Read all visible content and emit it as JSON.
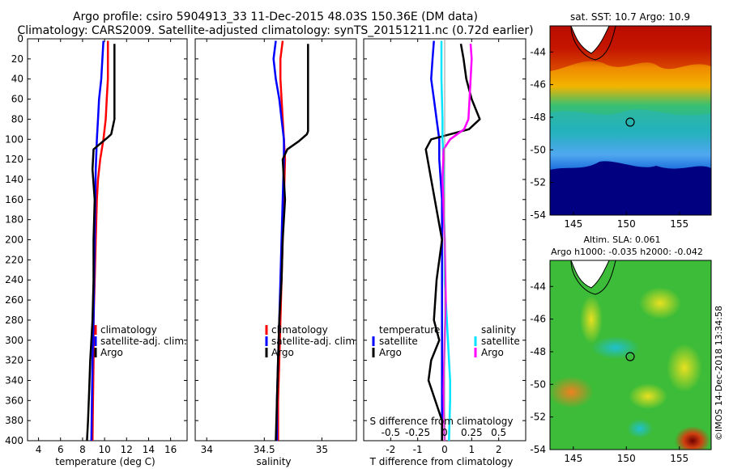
{
  "title": {
    "line1": "Argo profile: csiro 5904913_33 11-Dec-2015 48.03S 150.36E (DM data)",
    "line2": "Climatology: CARS2009. Satellite-adjusted climatology: synTS_20151211.nc (0.72d earlier)"
  },
  "depth_axis": {
    "ticks": [
      0,
      20,
      40,
      60,
      80,
      100,
      120,
      140,
      160,
      180,
      200,
      220,
      240,
      260,
      280,
      300,
      320,
      340,
      360,
      380,
      400
    ],
    "range": [
      0,
      400
    ]
  },
  "colors": {
    "climatology": "#ff0000",
    "satellite": "#0000ff",
    "argo": "#000000",
    "sal_satellite": "#00e5ff",
    "sal_argo": "#ff00ff"
  },
  "chart_data": [
    {
      "type": "line",
      "title": "Temperature profile",
      "xlabel": "temperature (deg C)",
      "xticks": [
        "4",
        "6",
        "8",
        "10",
        "12",
        "14",
        "16"
      ],
      "xlim": [
        3,
        17.5
      ],
      "ylim": [
        400,
        0
      ],
      "legend": {
        "position": "lower-left",
        "items": [
          "climatology",
          "satellite-adj. clim.",
          "Argo"
        ]
      },
      "series": [
        {
          "name": "climatology",
          "color": "#ff0000",
          "x": [
            10.3,
            10.3,
            10.3,
            10.2,
            10.1,
            9.9,
            9.6,
            9.4,
            9.3,
            9.2,
            9.1,
            9.0,
            9.0,
            8.95,
            8.9
          ],
          "y": [
            2,
            20,
            40,
            60,
            80,
            100,
            120,
            140,
            160,
            200,
            240,
            280,
            320,
            360,
            400
          ]
        },
        {
          "name": "satellite-adj. clim.",
          "color": "#0000ff",
          "x": [
            9.9,
            9.8,
            9.7,
            9.5,
            9.4,
            9.3,
            9.2,
            9.15,
            9.1,
            9.05,
            9.0,
            8.9,
            8.85,
            8.8
          ],
          "y": [
            2,
            20,
            40,
            60,
            80,
            100,
            130,
            160,
            200,
            240,
            280,
            320,
            360,
            400
          ]
        },
        {
          "name": "Argo",
          "color": "#000000",
          "x": [
            10.9,
            10.9,
            10.9,
            10.9,
            10.9,
            10.6,
            10.3,
            9.0,
            8.9,
            9.1,
            9.0,
            9.0,
            8.9,
            8.7,
            8.6,
            8.5,
            8.4
          ],
          "y": [
            5,
            20,
            40,
            60,
            80,
            95,
            98,
            110,
            130,
            160,
            200,
            240,
            280,
            320,
            350,
            380,
            400
          ]
        }
      ]
    },
    {
      "type": "line",
      "title": "Salinity profile",
      "xlabel": "salinity",
      "xticks": [
        "34",
        "34.5",
        "35"
      ],
      "xlim": [
        33.9,
        35.3
      ],
      "ylim": [
        400,
        0
      ],
      "legend": {
        "position": "lower-left",
        "items": [
          "climatology",
          "satellite-adj. clim.",
          "Argo"
        ]
      },
      "series": [
        {
          "name": "climatology",
          "color": "#ff0000",
          "x": [
            34.66,
            34.64,
            34.64,
            34.65,
            34.66,
            34.67,
            34.68,
            34.67,
            34.66,
            34.65,
            34.64,
            34.63,
            34.62,
            34.62
          ],
          "y": [
            2,
            20,
            40,
            60,
            80,
            100,
            120,
            160,
            200,
            240,
            280,
            320,
            360,
            400
          ]
        },
        {
          "name": "satellite-adj. clim.",
          "color": "#0000ff",
          "x": [
            34.6,
            34.58,
            34.6,
            34.63,
            34.65,
            34.67,
            34.67,
            34.66,
            34.65,
            34.64,
            34.63,
            34.62,
            34.61,
            34.61
          ],
          "y": [
            2,
            20,
            40,
            60,
            80,
            100,
            120,
            160,
            200,
            240,
            280,
            320,
            360,
            400
          ]
        },
        {
          "name": "Argo",
          "color": "#000000",
          "x": [
            34.88,
            34.88,
            34.88,
            34.88,
            34.87,
            34.8,
            34.7,
            34.66,
            34.68,
            34.66,
            34.65,
            34.63,
            34.62,
            34.61,
            34.6
          ],
          "y": [
            5,
            40,
            80,
            92,
            95,
            102,
            110,
            120,
            160,
            200,
            240,
            280,
            320,
            360,
            400
          ]
        }
      ]
    },
    {
      "type": "line",
      "title": "Difference from climatology",
      "xlabel": "T difference from climatology",
      "xticks": [
        "-2",
        "-1",
        "0",
        "1",
        "2"
      ],
      "xlim": [
        -3,
        3
      ],
      "x2label": "S difference from climatology",
      "x2ticks": [
        "-0.5",
        "-0.25",
        "0",
        "0.25",
        "0.5"
      ],
      "ylim": [
        400,
        0
      ],
      "legend": {
        "temperature_header": "temperature",
        "salinity_header": "salinity",
        "temperature_items": [
          "satellite",
          "Argo"
        ],
        "salinity_items": [
          "satellite",
          "Argo"
        ]
      },
      "series": [
        {
          "name": "T satellite",
          "color": "#0000ff",
          "x": [
            -0.4,
            -0.45,
            -0.5,
            -0.4,
            -0.3,
            -0.2,
            -0.2,
            -0.15,
            -0.1,
            -0.1,
            -0.1,
            -0.1,
            -0.1,
            -0.1,
            -0.1
          ],
          "y": [
            2,
            20,
            40,
            60,
            80,
            100,
            120,
            140,
            160,
            200,
            240,
            280,
            320,
            360,
            400
          ]
        },
        {
          "name": "T Argo",
          "color": "#000000",
          "x": [
            0.6,
            0.7,
            0.8,
            1.0,
            1.3,
            0.9,
            -0.5,
            -0.7,
            -0.5,
            -0.1,
            -0.3,
            -0.4,
            -0.2,
            -0.5,
            -0.6,
            -0.1,
            -0.1
          ],
          "y": [
            5,
            20,
            40,
            60,
            80,
            90,
            100,
            110,
            140,
            200,
            240,
            280,
            300,
            320,
            340,
            380,
            400
          ]
        },
        {
          "name": "S satellite",
          "color": "#00e5ff",
          "x": [
            -0.03,
            -0.03,
            -0.02,
            -0.02,
            -0.01,
            -0.01,
            0.0,
            0.0,
            0.01,
            0.02,
            0.03,
            0.04,
            0.05,
            0.05,
            0.04
          ],
          "y": [
            2,
            40,
            80,
            100,
            120,
            160,
            200,
            240,
            260,
            280,
            300,
            320,
            340,
            360,
            400
          ]
        },
        {
          "name": "S Argo",
          "color": "#ff00ff",
          "x": [
            0.24,
            0.25,
            0.24,
            0.23,
            0.22,
            0.18,
            0.05,
            -0.01,
            -0.02,
            0.0,
            0.01,
            0.0,
            -0.01,
            0.0
          ],
          "y": [
            5,
            20,
            40,
            60,
            80,
            90,
            100,
            110,
            140,
            200,
            260,
            300,
            350,
            400
          ]
        }
      ]
    }
  ],
  "maps": [
    {
      "title": "sat. SST: 10.7 Argo: 10.9",
      "xticks": [
        "145",
        "150",
        "155"
      ],
      "yticks": [
        "-44",
        "-46",
        "-48",
        "-50",
        "-52",
        "-54"
      ]
    },
    {
      "title_line1": "Altim. SLA: 0.061",
      "title_line2": "Argo h1000: -0.035 h2000: -0.042",
      "xticks": [
        "145",
        "150",
        "155"
      ],
      "yticks": [
        "-44",
        "-46",
        "-48",
        "-50",
        "-52",
        "-54"
      ]
    }
  ],
  "watermark": "©IMOS 14-Dec-2018 13:34:58"
}
